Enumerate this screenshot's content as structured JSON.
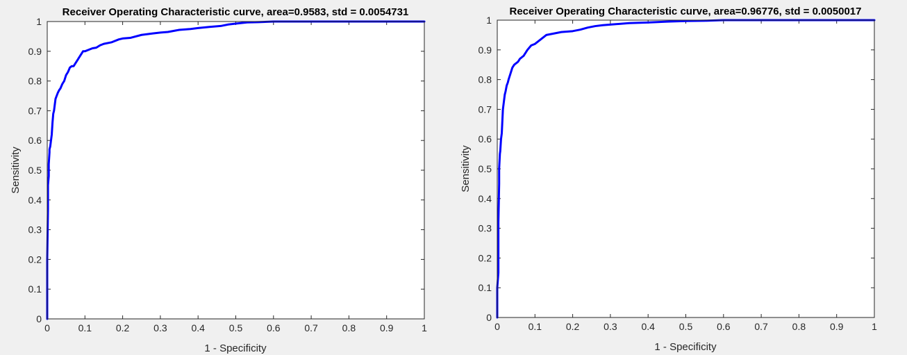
{
  "chart_data": [
    {
      "type": "line",
      "title": "Receiver Operating Characteristic curve, area=0.9583, std = 0.0054731",
      "xlabel": "1 - Specificity",
      "ylabel": "Sensitivity",
      "xlim": [
        0,
        1
      ],
      "ylim": [
        0,
        1
      ],
      "xticks": [
        "0",
        "0.1",
        "0.2",
        "0.3",
        "0.4",
        "0.5",
        "0.6",
        "0.7",
        "0.8",
        "0.9",
        "1"
      ],
      "yticks": [
        "0",
        "0.1",
        "0.2",
        "0.3",
        "0.4",
        "0.5",
        "0.6",
        "0.7",
        "0.8",
        "0.9",
        "1"
      ],
      "grid": false,
      "line_color": "#0000ff",
      "series": [
        {
          "x": [
            0,
            0,
            0.002,
            0.002,
            0.004,
            0.004,
            0.006,
            0.006,
            0.008,
            0.01,
            0.012,
            0.014,
            0.016,
            0.018,
            0.02,
            0.022,
            0.025,
            0.028,
            0.032,
            0.035,
            0.04,
            0.045,
            0.05,
            0.055,
            0.06,
            0.065,
            0.07,
            0.075,
            0.08,
            0.085,
            0.09,
            0.095,
            0.1,
            0.11,
            0.12,
            0.13,
            0.14,
            0.15,
            0.17,
            0.19,
            0.2,
            0.22,
            0.25,
            0.28,
            0.3,
            0.32,
            0.35,
            0.38,
            0.4,
            0.43,
            0.46,
            0.48,
            0.5,
            0.53,
            0.56,
            0.6,
            0.7,
            0.8,
            0.9,
            1
          ],
          "y": [
            0,
            0.2,
            0.37,
            0.45,
            0.48,
            0.52,
            0.56,
            0.57,
            0.58,
            0.6,
            0.62,
            0.66,
            0.69,
            0.7,
            0.72,
            0.74,
            0.75,
            0.76,
            0.77,
            0.775,
            0.79,
            0.8,
            0.82,
            0.83,
            0.845,
            0.85,
            0.85,
            0.86,
            0.87,
            0.88,
            0.89,
            0.9,
            0.9,
            0.905,
            0.91,
            0.912,
            0.92,
            0.925,
            0.93,
            0.94,
            0.943,
            0.945,
            0.955,
            0.96,
            0.963,
            0.965,
            0.972,
            0.975,
            0.978,
            0.982,
            0.985,
            0.99,
            0.993,
            0.997,
            0.998,
            1,
            1,
            1,
            1,
            1
          ]
        }
      ]
    },
    {
      "type": "line",
      "title": "Receiver Operating Characteristic curve, area=0.96776, std = 0.0050017",
      "xlabel": "1 - Specificity",
      "ylabel": "Sensitivity",
      "xlim": [
        0,
        1
      ],
      "ylim": [
        0,
        1
      ],
      "xticks": [
        "0",
        "0.1",
        "0.2",
        "0.3",
        "0.4",
        "0.5",
        "0.6",
        "0.7",
        "0.8",
        "0.9",
        "1"
      ],
      "yticks": [
        "0",
        "0.1",
        "0.2",
        "0.3",
        "0.4",
        "0.5",
        "0.6",
        "0.7",
        "0.8",
        "0.9",
        "1"
      ],
      "grid": false,
      "line_color": "#0000ff",
      "series": [
        {
          "x": [
            0,
            0,
            0.003,
            0.003,
            0.005,
            0.005,
            0.007,
            0.008,
            0.01,
            0.012,
            0.015,
            0.018,
            0.02,
            0.022,
            0.025,
            0.028,
            0.03,
            0.035,
            0.04,
            0.045,
            0.05,
            0.055,
            0.06,
            0.065,
            0.07,
            0.075,
            0.08,
            0.09,
            0.1,
            0.11,
            0.12,
            0.13,
            0.15,
            0.17,
            0.2,
            0.22,
            0.24,
            0.26,
            0.28,
            0.3,
            0.35,
            0.4,
            0.45,
            0.5,
            0.55,
            0.6,
            0.7,
            0.8,
            0.9,
            1
          ],
          "y": [
            0,
            0.1,
            0.15,
            0.32,
            0.45,
            0.5,
            0.55,
            0.56,
            0.6,
            0.62,
            0.7,
            0.73,
            0.75,
            0.76,
            0.78,
            0.79,
            0.8,
            0.82,
            0.84,
            0.85,
            0.855,
            0.86,
            0.87,
            0.875,
            0.88,
            0.89,
            0.9,
            0.915,
            0.92,
            0.93,
            0.94,
            0.95,
            0.955,
            0.96,
            0.963,
            0.968,
            0.975,
            0.98,
            0.983,
            0.985,
            0.99,
            0.992,
            0.995,
            0.997,
            0.998,
            1,
            1,
            1,
            1,
            1
          ]
        }
      ]
    }
  ]
}
